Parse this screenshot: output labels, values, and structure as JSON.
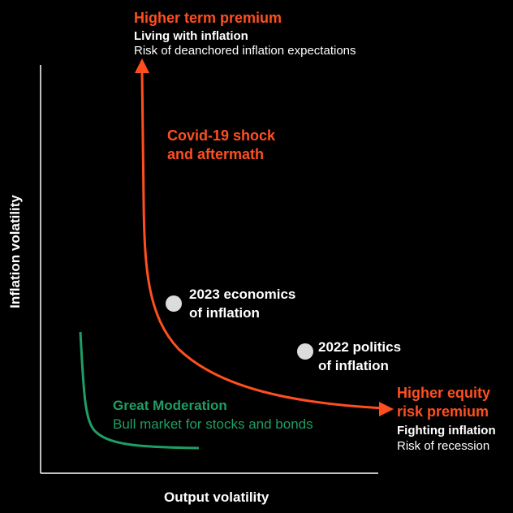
{
  "colors": {
    "background": "#000000",
    "accent_orange": "#ff4f1f",
    "moderation_green": "#1f9e64",
    "point_gray": "#dcdcdc",
    "axis": "#ffffff"
  },
  "axes": {
    "x_label": "Output volatility",
    "y_label": "Inflation volatility"
  },
  "top_regime": {
    "title": "Higher term premium",
    "subtitle": "Living with inflation",
    "description": "Risk of deanchored inflation expectations"
  },
  "right_regime": {
    "title_line1": "Higher equity",
    "title_line2": "risk premium",
    "subtitle": "Fighting inflation",
    "description": "Risk of recession"
  },
  "covid": {
    "line1": "Covid-19 shock",
    "line2": "and aftermath"
  },
  "points": {
    "economics": {
      "line1": "2023 economics",
      "line2": "of inflation"
    },
    "politics": {
      "line1": "2022 politics",
      "line2": "of inflation"
    }
  },
  "great_moderation": {
    "title": "Great Moderation",
    "subtitle": "Bull market for stocks and bonds"
  }
}
